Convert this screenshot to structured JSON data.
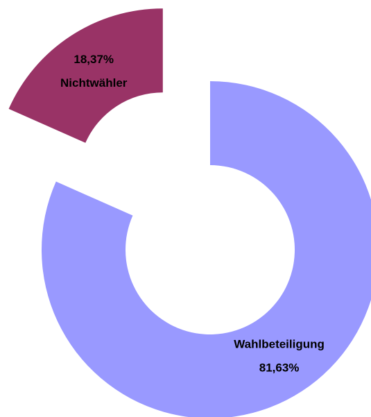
{
  "chart_data": {
    "type": "donut",
    "categories": [
      "Wahlbeteiligung",
      "Nichtwähler"
    ],
    "values": [
      81.63,
      18.37
    ],
    "value_labels": [
      "81,63%",
      "18,37%"
    ],
    "colors": [
      "#9999ff",
      "#993366"
    ]
  }
}
